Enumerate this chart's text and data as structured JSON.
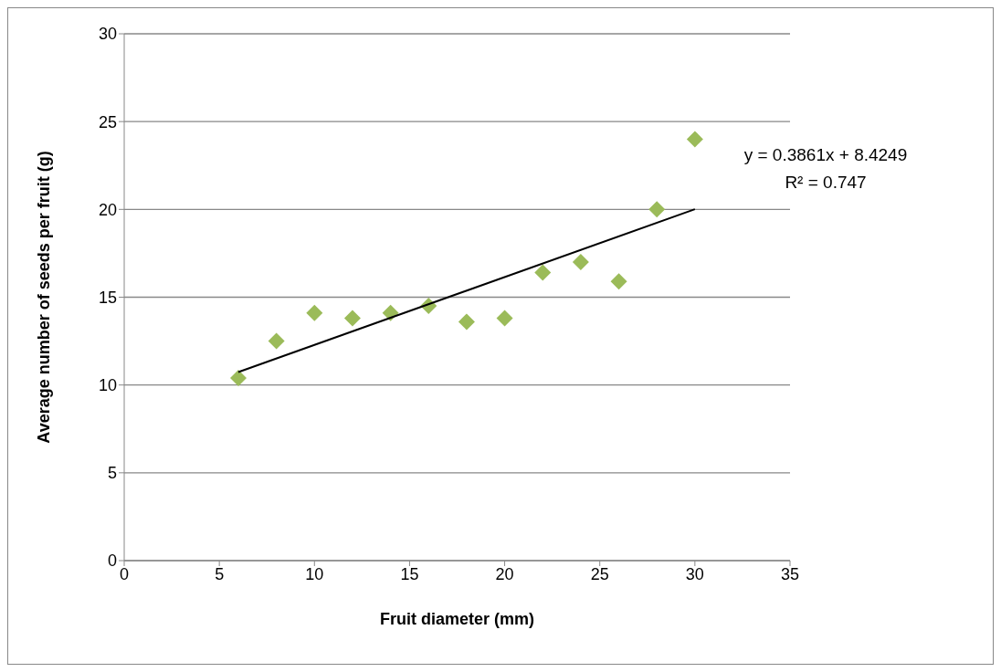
{
  "chart_data": {
    "type": "scatter",
    "xlabel": "Fruit diameter (mm)",
    "ylabel": "Average number of seeds per fruit (g)",
    "x": [
      6,
      8,
      10,
      12,
      14,
      16,
      18,
      20,
      22,
      24,
      26,
      28,
      30
    ],
    "series": [
      {
        "color": "#9bbb59",
        "marker": "diamond",
        "values": [
          10.4,
          12.5,
          14.1,
          13.8,
          14.1,
          14.5,
          13.6,
          13.8,
          16.4,
          17.0,
          15.9,
          20.0,
          24.0
        ]
      },
      {
        "type": "line",
        "color": "#000000",
        "line_style": "solid",
        "marker": "none",
        "x": [
          6,
          30
        ],
        "values": [
          10.74,
          20.01
        ]
      }
    ],
    "xlim": [
      0,
      35
    ],
    "xticks": [
      0,
      5,
      10,
      15,
      20,
      25,
      30,
      35
    ],
    "ylim": [
      0,
      30
    ],
    "yticks": [
      0,
      5,
      10,
      15,
      20,
      25,
      30
    ],
    "grid": "y",
    "legend": false,
    "annotations": [
      "y = 0.3861x + 8.4249",
      "R² = 0.747"
    ]
  }
}
